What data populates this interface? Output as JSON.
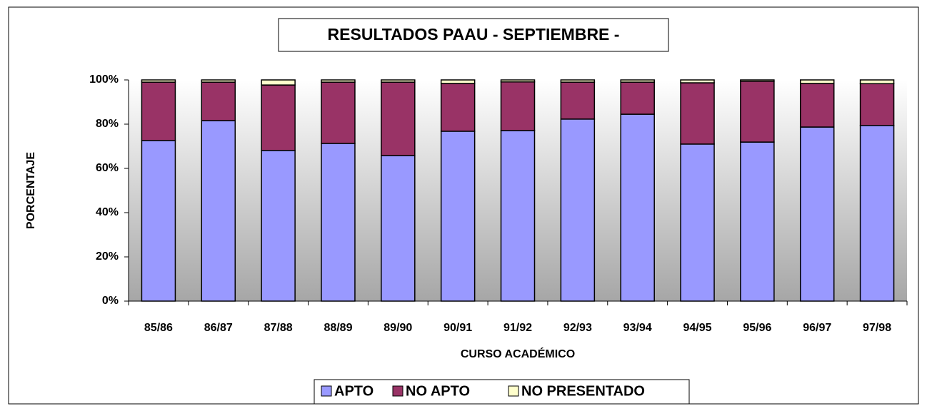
{
  "chart_data": {
    "type": "stacked_bar",
    "title": "RESULTADOS PAAU - SEPTIEMBRE -",
    "y_label": "PORCENTAJE",
    "x_label": "CURSO ACADÉMICO",
    "categories": [
      "85/86",
      "86/87",
      "87/88",
      "88/89",
      "89/90",
      "90/91",
      "91/92",
      "92/93",
      "93/94",
      "94/95",
      "95/96",
      "96/97",
      "97/98"
    ],
    "series": [
      {
        "name": "APTO",
        "color": "#9999ff",
        "values": [
          72.6,
          81.6,
          68.1,
          71.3,
          65.8,
          76.8,
          77.1,
          82.3,
          84.5,
          71.0,
          71.9,
          78.7,
          79.4
        ]
      },
      {
        "name": "NO APTO",
        "color": "#993366",
        "values": [
          26.4,
          17.4,
          29.6,
          27.7,
          33.2,
          21.6,
          22.0,
          16.7,
          14.5,
          27.7,
          27.5,
          19.7,
          18.9
        ]
      },
      {
        "name": "NO PRESENTADO",
        "color": "#ffffcc",
        "values": [
          1.0,
          1.0,
          2.3,
          1.0,
          1.0,
          1.6,
          0.9,
          1.0,
          1.0,
          1.3,
          0.6,
          1.6,
          1.7
        ]
      }
    ],
    "ylim": [
      0,
      100
    ],
    "yticks": [
      {
        "value": 0,
        "label": "0%"
      },
      {
        "value": 20,
        "label": "20%"
      },
      {
        "value": 40,
        "label": "40%"
      },
      {
        "value": 60,
        "label": "60%"
      },
      {
        "value": 80,
        "label": "80%"
      },
      {
        "value": 100,
        "label": "100%"
      }
    ],
    "grid": false,
    "legend": "bottom"
  }
}
